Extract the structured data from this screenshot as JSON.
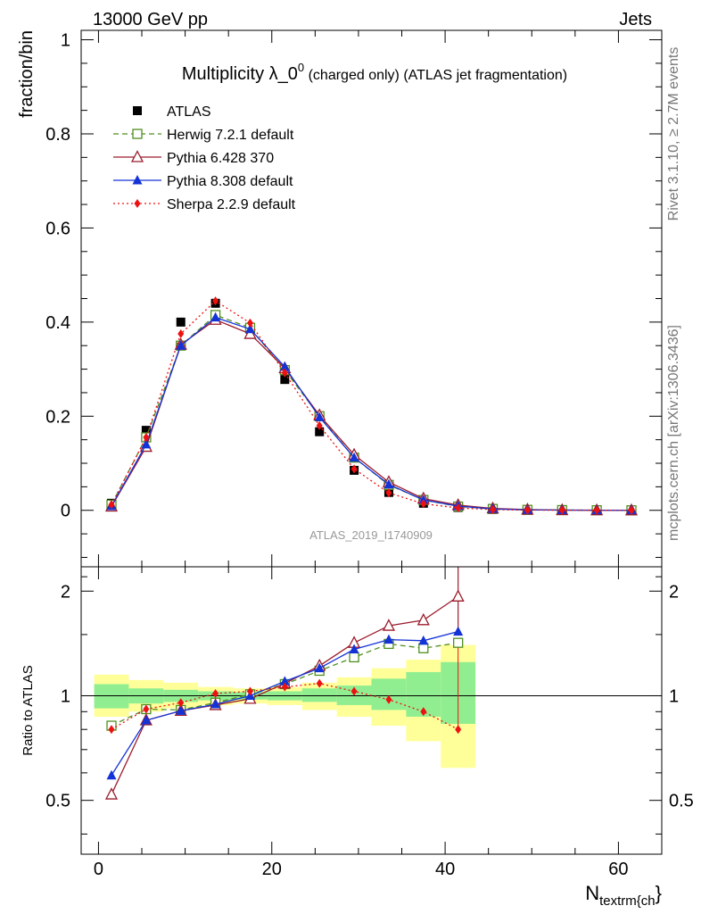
{
  "header": {
    "left": "13000 GeV pp",
    "right": "Jets",
    "analysis": "ATLAS_2019_I1740909",
    "side_top": "Rivet 3.1.10, ≥ 2.7M events",
    "side_bottom": "mcplots.cern.ch [arXiv:1306.3436]"
  },
  "chart_data": [
    {
      "type": "line",
      "title": "Multiplicity λ_0",
      "title_sup": "0",
      "title_suffix": " (charged only) (ATLAS jet fragmentation)",
      "ylabel": "fraction/bin",
      "xlabel": "N",
      "xlabel_sub": "textrm{ch",
      "xlabel_suffix": "}",
      "xlim": [
        -2,
        65
      ],
      "ylim": [
        -0.12,
        1.02
      ],
      "yticks": [
        0,
        0.2,
        0.4,
        0.6,
        0.8,
        1
      ],
      "ytick_labels": [
        "0",
        "0.2",
        "0.4",
        "0.6",
        "0.8",
        "1"
      ],
      "x": [
        1.5,
        5.5,
        9.5,
        13.5,
        17.5,
        21.5,
        25.5,
        29.5,
        33.5,
        37.5,
        41.5,
        45.5,
        49.5,
        53.5,
        57.5,
        61.5
      ],
      "series": [
        {
          "name": "ATLAS",
          "color": "#000000",
          "marker": "square",
          "values": [
            0.015,
            0.17,
            0.4,
            0.44,
            0.385,
            0.278,
            0.167,
            0.085,
            0.038,
            0.015,
            0.006,
            0.002,
            0.001,
            0.0005,
            0.0002,
            0.0001
          ]
        },
        {
          "name": "Herwig 7.2.1 default",
          "color": "#4f8f1f",
          "marker": "open-square",
          "dash": "6,4",
          "values": [
            0.012,
            0.155,
            0.35,
            0.415,
            0.388,
            0.298,
            0.2,
            0.112,
            0.054,
            0.022,
            0.008,
            0.003,
            0.001,
            0.0005,
            0.0002,
            0.0001
          ]
        },
        {
          "name": "Pythia 6.428 370",
          "color": "#9b1c2c",
          "marker": "open-triangle",
          "values": [
            0.008,
            0.135,
            0.352,
            0.405,
            0.375,
            0.302,
            0.202,
            0.118,
            0.06,
            0.025,
            0.011,
            0.004,
            0.0015,
            0.0005,
            0.0002,
            0.0001
          ]
        },
        {
          "name": "Pythia 8.308 default",
          "color": "#1433d6",
          "marker": "triangle",
          "values": [
            0.009,
            0.14,
            0.35,
            0.41,
            0.385,
            0.305,
            0.198,
            0.112,
            0.055,
            0.022,
            0.009,
            0.003,
            0.001,
            0.0005,
            0.0002,
            0.0001
          ]
        },
        {
          "name": "Sherpa 2.2.9 default",
          "color": "#ee1111",
          "marker": "diamond",
          "dash": "2,3",
          "values": [
            0.012,
            0.155,
            0.375,
            0.445,
            0.398,
            0.292,
            0.18,
            0.088,
            0.037,
            0.014,
            0.005,
            0.0015,
            0.0005,
            0.0002,
            0.0001,
            0.0
          ]
        }
      ]
    },
    {
      "type": "line",
      "ylabel": "Ratio to ATLAS",
      "xlim": [
        -2,
        65
      ],
      "ylim": [
        0.35,
        2.35
      ],
      "yscale": "log",
      "yticks": [
        0.5,
        1,
        2
      ],
      "ytick_labels": [
        "0.5",
        "1",
        "2"
      ],
      "xticks": [
        0,
        20,
        40,
        60
      ],
      "xtick_labels": [
        "0",
        "20",
        "40",
        "60"
      ],
      "x": [
        1.5,
        5.5,
        9.5,
        13.5,
        17.5,
        21.5,
        25.5,
        29.5,
        33.5,
        37.5,
        41.5
      ],
      "bands": {
        "edges": [
          -0.5,
          3.5,
          7.5,
          11.5,
          15.5,
          19.5,
          23.5,
          27.5,
          31.5,
          35.5,
          39.5,
          43.5
        ],
        "stat": [
          [
            0.92,
            1.08
          ],
          [
            0.95,
            1.05
          ],
          [
            0.96,
            1.04
          ],
          [
            0.97,
            1.03
          ],
          [
            0.975,
            1.025
          ],
          [
            0.97,
            1.03
          ],
          [
            0.96,
            1.05
          ],
          [
            0.94,
            1.07
          ],
          [
            0.91,
            1.12
          ],
          [
            0.87,
            1.17
          ],
          [
            0.83,
            1.25
          ]
        ],
        "syst": [
          [
            0.87,
            1.15
          ],
          [
            0.9,
            1.11
          ],
          [
            0.92,
            1.09
          ],
          [
            0.94,
            1.06
          ],
          [
            0.95,
            1.05
          ],
          [
            0.94,
            1.06
          ],
          [
            0.91,
            1.09
          ],
          [
            0.87,
            1.13
          ],
          [
            0.82,
            1.2
          ],
          [
            0.74,
            1.27
          ],
          [
            0.62,
            1.4
          ]
        ],
        "stat_color": "#90ee90",
        "syst_color": "#ffff99"
      },
      "series": [
        {
          "name": "Herwig 7.2.1 default",
          "color": "#4f8f1f",
          "marker": "open-square",
          "dash": "6,4",
          "values": [
            0.82,
            0.915,
            0.91,
            0.955,
            1.01,
            1.08,
            1.18,
            1.29,
            1.41,
            1.37,
            1.42
          ]
        },
        {
          "name": "Pythia 6.428 370",
          "color": "#9b1c2c",
          "marker": "open-triangle",
          "values": [
            0.52,
            0.85,
            0.905,
            0.94,
            0.98,
            1.085,
            1.22,
            1.42,
            1.59,
            1.65,
            1.93
          ]
        },
        {
          "name": "Pythia 8.308 default",
          "color": "#1433d6",
          "marker": "triangle",
          "values": [
            0.59,
            0.85,
            0.905,
            0.945,
            1.0,
            1.1,
            1.2,
            1.36,
            1.45,
            1.44,
            1.53
          ]
        },
        {
          "name": "Sherpa 2.2.9 default",
          "color": "#ee1111",
          "marker": "diamond",
          "dash": "2,3",
          "values": [
            0.8,
            0.915,
            0.955,
            1.015,
            1.03,
            1.06,
            1.085,
            1.03,
            0.975,
            0.9,
            0.8
          ]
        }
      ]
    }
  ]
}
